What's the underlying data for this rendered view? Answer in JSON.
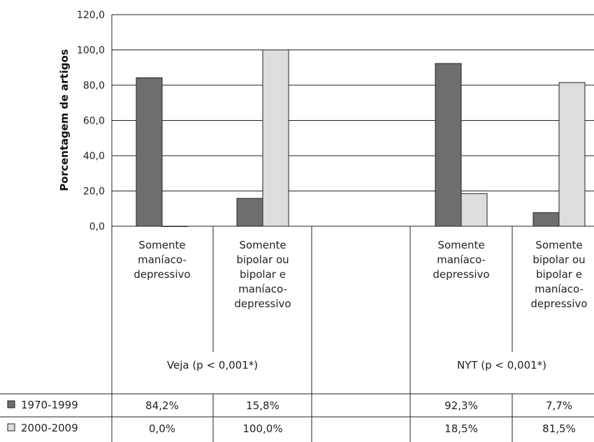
{
  "chart_data": {
    "type": "bar",
    "ylabel": "Porcentagem de artigos",
    "ylim": [
      0,
      120
    ],
    "y_ticks": [
      "0,0",
      "20,0",
      "40,0",
      "60,0",
      "80,0",
      "100,0",
      "120,0"
    ],
    "grid": true,
    "categories": [
      [
        "Somente",
        "maníaco-",
        "depressivo"
      ],
      [
        "Somente",
        "bipolar ou",
        "bipolar e",
        "maníaco-",
        "depressivo"
      ],
      [],
      [
        "Somente",
        "maníaco-",
        "depressivo"
      ],
      [
        "Somente",
        "bipolar ou",
        "bipolar e",
        "maníaco-",
        "depressivo"
      ]
    ],
    "groups": [
      "Veja (p < 0,001*)",
      "NYT (p < 0,001*)"
    ],
    "series": [
      {
        "name": "1970-1999",
        "color": "#6d6e70",
        "values": [
          84.2,
          15.8,
          null,
          92.3,
          7.7
        ],
        "labels": [
          "84,2%",
          "15,8%",
          "",
          "92,3%",
          "7,7%"
        ]
      },
      {
        "name": "2000-2009",
        "color": "#dcdddf",
        "values": [
          0.0,
          100.0,
          null,
          18.5,
          81.5
        ],
        "labels": [
          "0,0%",
          "100,0%",
          "",
          "18,5%",
          "81,5%"
        ]
      }
    ]
  }
}
